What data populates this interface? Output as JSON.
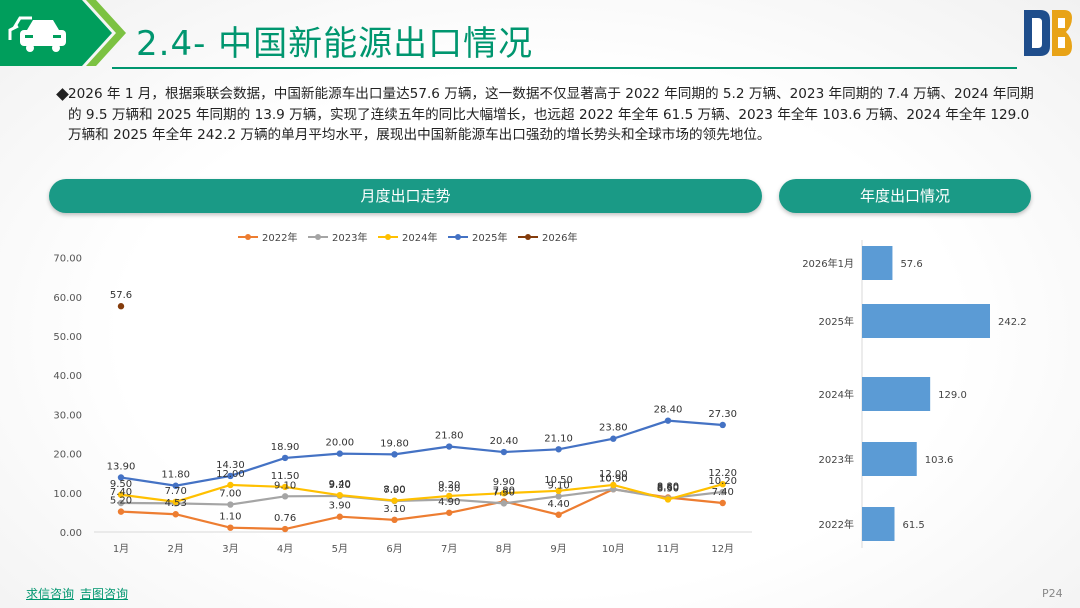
{
  "title": "2.4- 中国新能源出口情况",
  "paragraph": "2026 年 1 月，根据乘联会数据，中国新能源车出口量达57.6 万辆，这一数据不仅显著高于 2022 年同期的 5.2 万辆、2023 年同期的 7.4 万辆、2024 年同期的 9.5 万辆和 2025 年同期的 13.9 万辆，实现了连续五年的同比大幅增长，也远超 2022 年全年 61.5 万辆、2023 年全年 103.6 万辆、2024 年全年 129.0 万辆和 2025 年全年 242.2 万辆的单月平均水平，展现出中国新能源车出口强劲的增长势头和全球市场的领先地位。",
  "pills": {
    "monthly": "月度出口走势",
    "annual": "年度出口情况"
  },
  "footer": {
    "brand1": "求信咨询",
    "brand2": "吉图咨询",
    "page": "P24"
  },
  "colors": {
    "accent": "#00966f",
    "pill": "#1a9a86",
    "bar": "#5b9bd5"
  },
  "chart_data": [
    {
      "type": "line",
      "categories": [
        "1月",
        "2月",
        "3月",
        "4月",
        "5月",
        "6月",
        "7月",
        "8月",
        "9月",
        "10月",
        "11月",
        "12月"
      ],
      "ylim": [
        0,
        70
      ],
      "yticks": [
        "0.00",
        "10.00",
        "20.00",
        "30.00",
        "40.00",
        "50.00",
        "60.00",
        "70.00"
      ],
      "legend": "top",
      "series": [
        {
          "name": "2022年",
          "color": "#ed7d31",
          "values": [
            5.2,
            4.53,
            1.1,
            0.76,
            3.9,
            3.1,
            4.9,
            7.8,
            4.4,
            10.9,
            8.8,
            7.4
          ]
        },
        {
          "name": "2023年",
          "color": "#a5a5a5",
          "values": [
            7.4,
            7.3,
            7.0,
            9.1,
            9.2,
            7.9,
            8.3,
            7.3,
            9.1,
            10.9,
            8.6,
            10.2
          ]
        },
        {
          "name": "2024年",
          "color": "#ffc000",
          "values": [
            9.5,
            7.7,
            12.0,
            11.5,
            9.4,
            8.0,
            9.2,
            9.9,
            10.5,
            12.0,
            8.3,
            12.2
          ]
        },
        {
          "name": "2025年",
          "color": "#4472c4",
          "values": [
            13.9,
            11.8,
            14.3,
            18.9,
            20.0,
            19.8,
            21.8,
            20.4,
            21.1,
            23.8,
            28.4,
            27.3
          ]
        },
        {
          "name": "2026年",
          "color": "#843c0c",
          "values": [
            57.6,
            null,
            null,
            null,
            null,
            null,
            null,
            null,
            null,
            null,
            null,
            null
          ]
        }
      ],
      "point_labels": [
        [
          "57.6",
          "1月",
          57.6
        ],
        [
          "13.90",
          "1月",
          13.9
        ],
        [
          "11.80",
          "2月",
          11.8
        ],
        [
          "14.30",
          "3月",
          14.3
        ],
        [
          "18.90",
          "4月",
          18.9
        ],
        [
          "20.00",
          "5月",
          20.0
        ],
        [
          "19.80",
          "6月",
          19.8
        ],
        [
          "21.80",
          "7月",
          21.8
        ],
        [
          "20.40",
          "8月",
          20.4
        ],
        [
          "21.10",
          "9月",
          21.1
        ],
        [
          "23.80",
          "10月",
          23.8
        ],
        [
          "28.40",
          "11月",
          28.4
        ],
        [
          "27.30",
          "12月",
          27.3
        ],
        [
          "9.50",
          "1月",
          9.5
        ],
        [
          "7.70",
          "2月",
          7.7
        ],
        [
          "12.00",
          "3月",
          12.0
        ],
        [
          "11.50",
          "4月",
          11.5
        ],
        [
          "9.40",
          "5月",
          9.4
        ],
        [
          "8.00",
          "6月",
          8.0
        ],
        [
          "9.20",
          "7月",
          9.2
        ],
        [
          "9.90",
          "8月",
          9.9
        ],
        [
          "10.50",
          "9月",
          10.5
        ],
        [
          "12.00",
          "10月",
          12.0
        ],
        [
          "8.30",
          "11月",
          8.3
        ],
        [
          "12.20",
          "12月",
          12.2
        ],
        [
          "7.40",
          "1月",
          7.4
        ],
        [
          "7.00",
          "3月",
          7.0
        ],
        [
          "9.10",
          "4月",
          9.1
        ],
        [
          "9.20",
          "5月",
          9.2
        ],
        [
          "7.90",
          "6月",
          7.9
        ],
        [
          "8.30",
          "7月",
          8.3
        ],
        [
          "7.30",
          "8月",
          7.3
        ],
        [
          "9.10",
          "9月",
          9.1
        ],
        [
          "10.90",
          "10月",
          10.9
        ],
        [
          "8.60",
          "11月",
          8.6
        ],
        [
          "10.20",
          "12月",
          10.2
        ],
        [
          "5.20",
          "1月",
          5.2
        ],
        [
          "4.53",
          "2月",
          4.53
        ],
        [
          "1.10",
          "3月",
          1.1
        ],
        [
          "0.76",
          "4月",
          0.76
        ],
        [
          "3.90",
          "5月",
          3.9
        ],
        [
          "3.10",
          "6月",
          3.1
        ],
        [
          "4.90",
          "7月",
          4.9
        ],
        [
          "7.80",
          "8月",
          7.8
        ],
        [
          "4.40",
          "9月",
          4.4
        ],
        [
          "10.90",
          "10月",
          10.9
        ],
        [
          "8.80",
          "11月",
          8.8
        ],
        [
          "7.40",
          "12月",
          7.4
        ]
      ]
    },
    {
      "type": "bar",
      "orientation": "horizontal",
      "categories": [
        "2026年1月",
        "2025年",
        "2024年",
        "2023年",
        "2022年"
      ],
      "values": [
        57.6,
        242.2,
        129.0,
        103.6,
        61.5
      ],
      "labels": [
        "57.6",
        "242.2",
        "129.0",
        "103.6",
        "61.5"
      ]
    }
  ]
}
